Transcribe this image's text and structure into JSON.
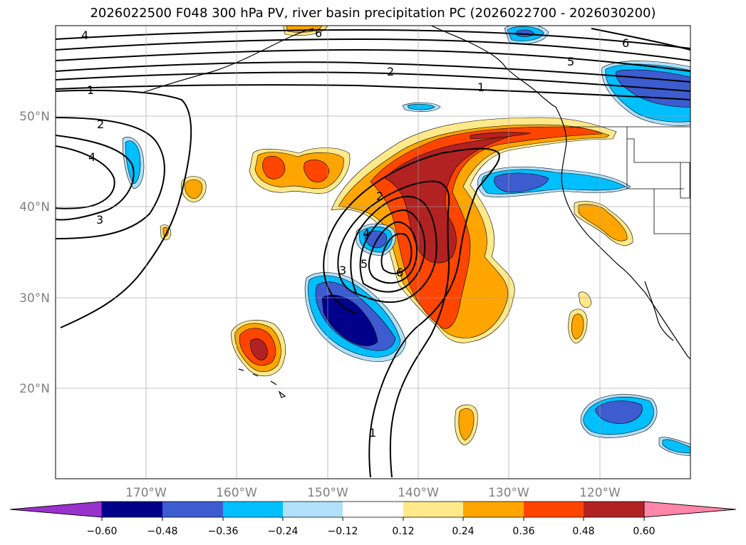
{
  "title": "2026022500 F048 300 hPa PV, river basin precipitation PC (2026022700 - 2026030200)",
  "lat_labels": [
    "50°N",
    "40°N",
    "30°N",
    "20°N"
  ],
  "lon_labels": [
    "170°W",
    "160°W",
    "150°W",
    "140°W",
    "130°W",
    "120°W"
  ],
  "pv_contour_labels": [
    "4",
    "6",
    "5",
    "6",
    "2",
    "1",
    "1",
    "2",
    "4",
    "3",
    "2",
    "4",
    "3",
    "5",
    "6",
    "1"
  ],
  "colorbar": {
    "ticks": [
      "−0.60",
      "−0.48",
      "−0.36",
      "−0.24",
      "−0.12",
      "0.12",
      "0.24",
      "0.36",
      "0.48",
      "0.60"
    ],
    "colors": [
      "#9932cc",
      "#00008b",
      "#3c5ccf",
      "#00bfff",
      "#b0e0fa",
      "#ffffff",
      "#ffe98a",
      "#ffa500",
      "#ff4500",
      "#b22222",
      "#ff85aa"
    ]
  }
}
